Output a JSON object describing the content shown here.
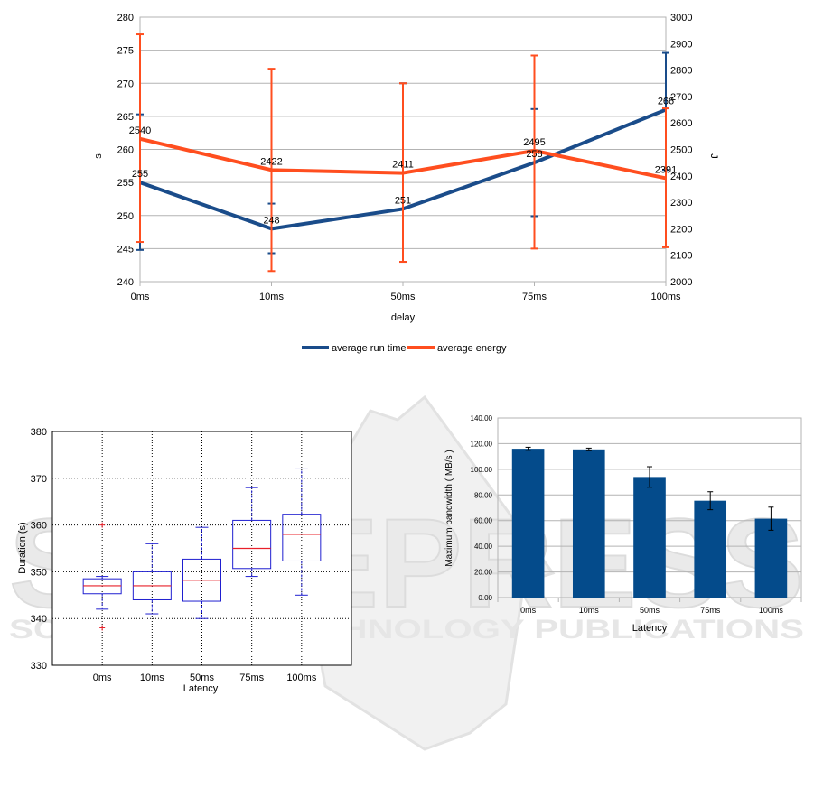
{
  "watermark": {
    "big": "SCITEPRESS",
    "sub": "SCIENCE AND TECHNOLOGY PUBLICATIONS"
  },
  "chart_data": [
    {
      "type": "line",
      "categories": [
        "0ms",
        "10ms",
        "50ms",
        "75ms",
        "100ms"
      ],
      "xlabel": "delay",
      "ylabel": "s",
      "ylabel_right": "J",
      "ylim": [
        240,
        280
      ],
      "ylim_right": [
        2000,
        3000
      ],
      "yticks": [
        "240",
        "245",
        "250",
        "255",
        "260",
        "265",
        "270",
        "275",
        "280"
      ],
      "yticks_right": [
        "2000",
        "2100",
        "2200",
        "2300",
        "2400",
        "2500",
        "2600",
        "2700",
        "2800",
        "2900",
        "3000"
      ],
      "legend_position": "bottom",
      "series": [
        {
          "name": "average run time",
          "axis": "left",
          "color": "#1a4c8a",
          "values": [
            255,
            248,
            251,
            258,
            266
          ],
          "labels": [
            "255",
            "248",
            "251",
            "258",
            "266"
          ],
          "err_low": [
            244.8,
            244.3,
            243.0,
            249.9,
            256.9
          ],
          "err_high": [
            265.3,
            251.8,
            270.0,
            266.1,
            274.6
          ]
        },
        {
          "name": "average energy",
          "axis": "right",
          "color": "#ff4e1f",
          "values": [
            2540,
            2422,
            2411,
            2495,
            2391
          ],
          "labels": [
            "2540",
            "2422",
            "2411",
            "2495",
            "2391"
          ],
          "err_low": [
            2150,
            2040,
            2075,
            2125,
            2130
          ],
          "err_high": [
            2935,
            2805,
            2750,
            2855,
            2655
          ]
        }
      ]
    },
    {
      "type": "box",
      "categories": [
        "0ms",
        "10ms",
        "50ms",
        "75ms",
        "100ms"
      ],
      "xlabel": "Latency",
      "ylabel": "Duration (s)",
      "ylim": [
        330,
        380
      ],
      "yticks": [
        "330",
        "340",
        "350",
        "360",
        "370",
        "380"
      ],
      "grid": true,
      "box_color": "#1f1fd0",
      "median_color": "#e8202a",
      "boxes": [
        {
          "whisker_low": 342,
          "q1": 345.3,
          "median": 347,
          "q3": 348.5,
          "whisker_high": 349,
          "outliers": [
            360,
            338
          ]
        },
        {
          "whisker_low": 341,
          "q1": 344,
          "median": 347,
          "q3": 350,
          "whisker_high": 356,
          "outliers": []
        },
        {
          "whisker_low": 340,
          "q1": 343.7,
          "median": 348.2,
          "q3": 352.7,
          "whisker_high": 359.5,
          "outliers": []
        },
        {
          "whisker_low": 349,
          "q1": 350.7,
          "median": 355,
          "q3": 361,
          "whisker_high": 368,
          "outliers": []
        },
        {
          "whisker_low": 345,
          "q1": 352.3,
          "median": 358,
          "q3": 362.3,
          "whisker_high": 372,
          "outliers": []
        }
      ]
    },
    {
      "type": "bar",
      "categories": [
        "0ms",
        "10ms",
        "50ms",
        "75ms",
        "100ms"
      ],
      "xlabel": "Latency",
      "ylabel": "Maximum bandwidth ( MB/s )",
      "ylim": [
        0,
        140
      ],
      "yticks": [
        "0.00",
        "20.00",
        "40.00",
        "60.00",
        "80.00",
        "100.00",
        "120.00",
        "140.00"
      ],
      "color": "#044b8b",
      "values": [
        116,
        115.5,
        94,
        75.5,
        61.5
      ],
      "errors": [
        1.2,
        1.0,
        8,
        7,
        9
      ]
    }
  ]
}
